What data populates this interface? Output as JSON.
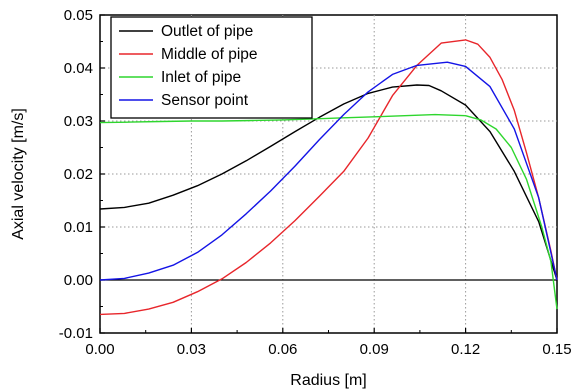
{
  "chart_data": {
    "type": "line",
    "title": "",
    "xlabel": "Radius [m]",
    "ylabel": "Axial velocity [m/s]",
    "xlim": [
      0.0,
      0.15
    ],
    "ylim": [
      -0.01,
      0.05
    ],
    "xticks": [
      "0.00",
      "0.03",
      "0.06",
      "0.09",
      "0.12",
      "0.15"
    ],
    "yticks": [
      "-0.01",
      "0.00",
      "0.01",
      "0.02",
      "0.03",
      "0.04",
      "0.05"
    ],
    "grid": true,
    "legend_position": "top-left",
    "zero_line": true,
    "series": [
      {
        "name": "Outlet of pipe",
        "color": "#000000",
        "x": [
          0.0,
          0.008,
          0.016,
          0.024,
          0.032,
          0.04,
          0.048,
          0.056,
          0.064,
          0.072,
          0.08,
          0.088,
          0.096,
          0.104,
          0.108,
          0.112,
          0.12,
          0.128,
          0.136,
          0.144,
          0.15
        ],
        "y": [
          0.0134,
          0.0137,
          0.0145,
          0.016,
          0.0178,
          0.02,
          0.0225,
          0.0252,
          0.028,
          0.0307,
          0.0332,
          0.0352,
          0.0364,
          0.0368,
          0.0367,
          0.0357,
          0.033,
          0.028,
          0.0205,
          0.011,
          0.0
        ]
      },
      {
        "name": "Middle of pipe",
        "color": "#e8262b",
        "x": [
          0.0,
          0.008,
          0.016,
          0.024,
          0.032,
          0.04,
          0.048,
          0.056,
          0.064,
          0.072,
          0.08,
          0.088,
          0.096,
          0.104,
          0.112,
          0.12,
          0.124,
          0.128,
          0.132,
          0.136,
          0.14,
          0.144,
          0.148,
          0.15
        ],
        "y": [
          -0.0065,
          -0.0063,
          -0.0055,
          -0.0042,
          -0.0022,
          0.0002,
          0.0033,
          0.007,
          0.0112,
          0.0158,
          0.0205,
          0.0268,
          0.0348,
          0.0405,
          0.0447,
          0.0453,
          0.0445,
          0.042,
          0.0378,
          0.032,
          0.024,
          0.0155,
          0.0055,
          0.0
        ]
      },
      {
        "name": "Inlet of pipe",
        "color": "#2ed62e",
        "x": [
          0.0,
          0.01,
          0.02,
          0.03,
          0.04,
          0.05,
          0.06,
          0.07,
          0.08,
          0.09,
          0.1,
          0.11,
          0.12,
          0.125,
          0.13,
          0.135,
          0.14,
          0.145,
          0.148,
          0.15
        ],
        "y": [
          0.0297,
          0.0298,
          0.0299,
          0.03,
          0.03,
          0.0301,
          0.0302,
          0.0304,
          0.0306,
          0.0308,
          0.031,
          0.0312,
          0.031,
          0.0302,
          0.0285,
          0.025,
          0.019,
          0.01,
          0.0035,
          -0.0055
        ]
      },
      {
        "name": "Sensor point",
        "color": "#1414e6",
        "x": [
          0.0,
          0.008,
          0.016,
          0.024,
          0.032,
          0.04,
          0.048,
          0.056,
          0.064,
          0.072,
          0.08,
          0.088,
          0.096,
          0.104,
          0.114,
          0.12,
          0.128,
          0.136,
          0.144,
          0.15
        ],
        "y": [
          0.0,
          0.0003,
          0.0013,
          0.0028,
          0.0052,
          0.0085,
          0.0125,
          0.0168,
          0.0215,
          0.0265,
          0.0312,
          0.0355,
          0.0388,
          0.0405,
          0.0411,
          0.0403,
          0.0365,
          0.0285,
          0.0155,
          0.0
        ]
      }
    ]
  }
}
